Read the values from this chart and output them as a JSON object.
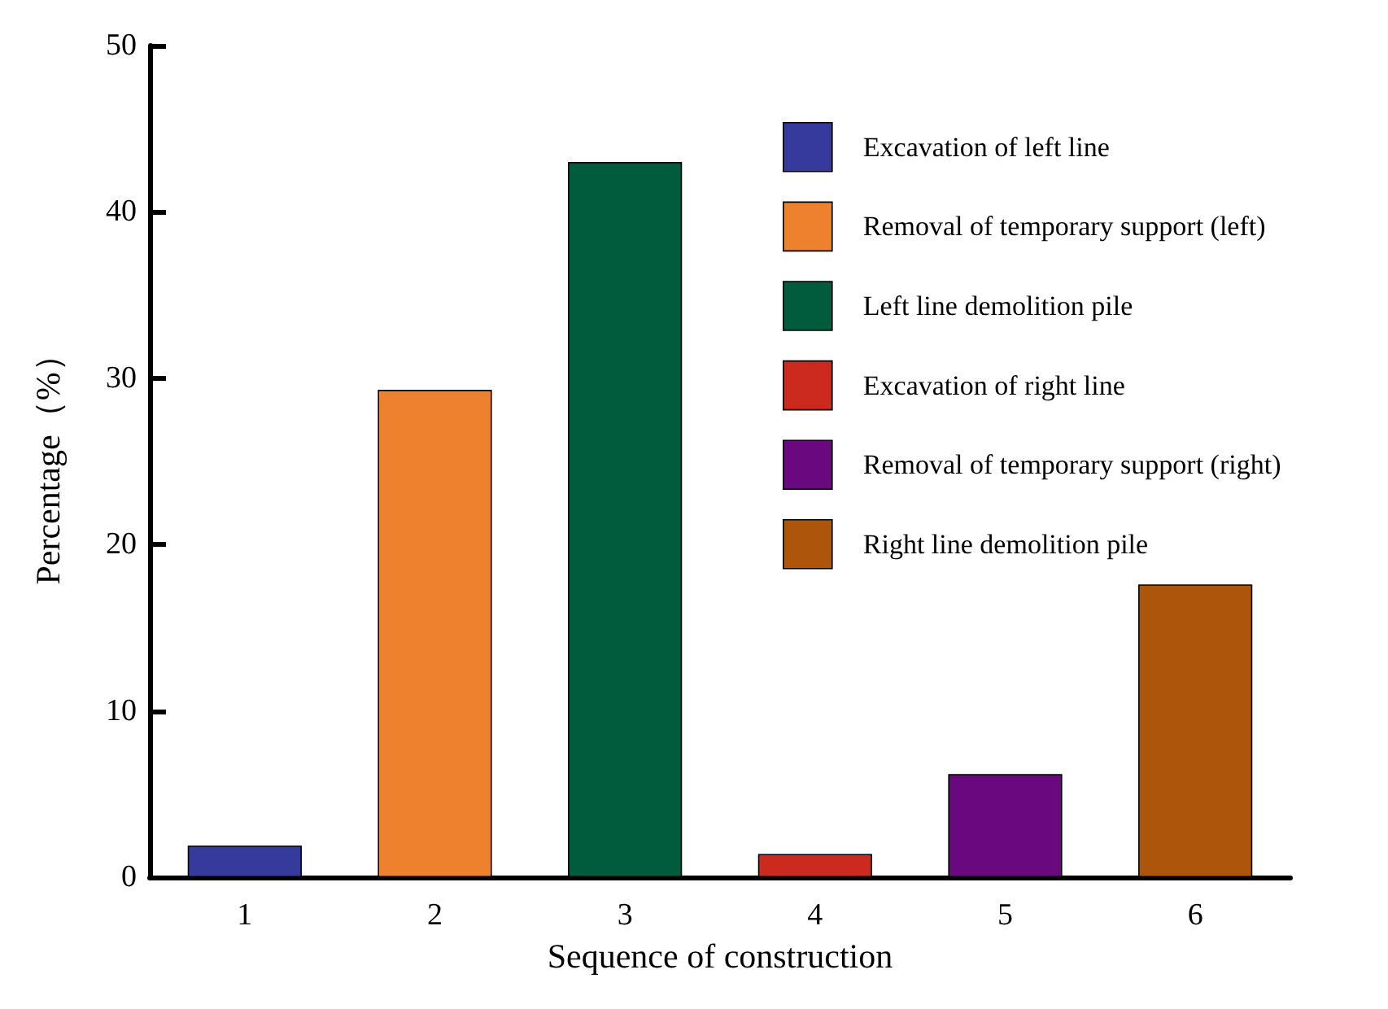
{
  "chart_data": {
    "type": "bar",
    "xlabel": "Sequence of construction",
    "ylabel": "Percentage（%）",
    "categories": [
      "1",
      "2",
      "3",
      "4",
      "5",
      "6"
    ],
    "stacked": true,
    "series": [
      {
        "name": "Excavation of left line",
        "color": "#353a9c",
        "values": [
          1.9,
          null,
          null,
          null,
          null,
          null
        ]
      },
      {
        "name": "Removal of temporary support (left)",
        "color": "#ee812e",
        "values": [
          null,
          29.3,
          null,
          null,
          null,
          null
        ]
      },
      {
        "name": "Left line demolition pile",
        "color": "#005c3c",
        "values": [
          null,
          null,
          43.0,
          null,
          null,
          null
        ]
      },
      {
        "name": "Excavation of right line",
        "color": "#cc2a1e",
        "values": [
          null,
          null,
          null,
          1.4,
          null,
          null
        ]
      },
      {
        "name": "Removal of temporary support (right)",
        "color": "#6a0880",
        "values": [
          null,
          null,
          null,
          null,
          6.2,
          null
        ]
      },
      {
        "name": "Right line demolition pile",
        "color": "#ae550c",
        "values": [
          null,
          null,
          null,
          null,
          null,
          17.6
        ]
      }
    ],
    "ylim": [
      0,
      50
    ],
    "yticks": [
      0,
      10,
      20,
      30,
      40,
      50
    ],
    "grid": false,
    "legend": "top right"
  }
}
